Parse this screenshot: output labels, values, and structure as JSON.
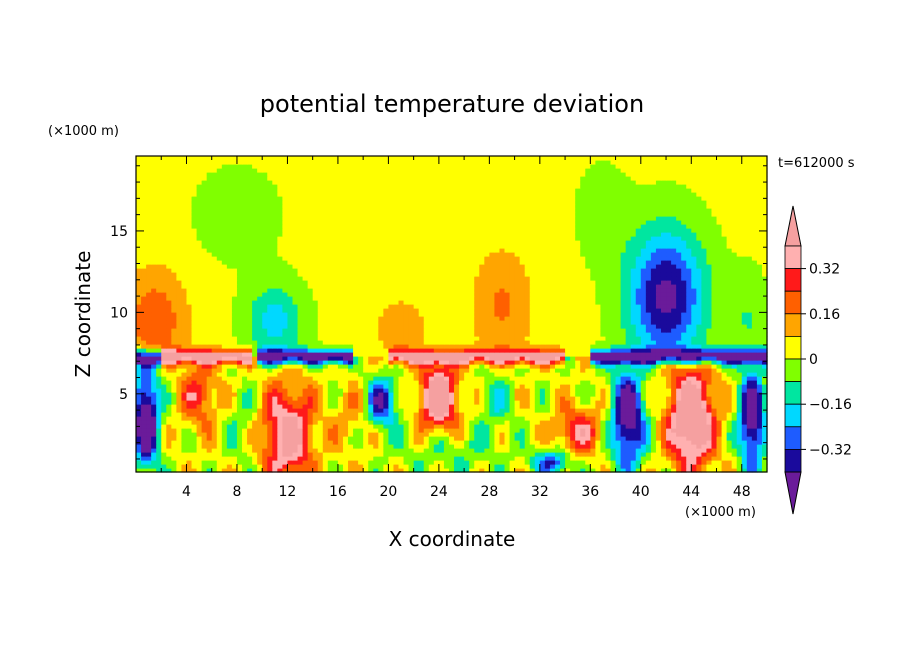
{
  "chart_data": {
    "type": "heatmap",
    "title": "potential temperature deviation",
    "time_label": "t=612000 s",
    "xlabel": "X coordinate",
    "ylabel": "Z coordinate",
    "x_unit": "(×1000 m)",
    "y_unit": "(×1000 m)",
    "xlim": [
      0,
      50
    ],
    "ylim": [
      0.2,
      19.6
    ],
    "x_ticks": [
      "4",
      "8",
      "12",
      "16",
      "20",
      "24",
      "28",
      "32",
      "36",
      "40",
      "44",
      "48"
    ],
    "y_ticks": [
      "5",
      "10",
      "15"
    ],
    "colorbar": {
      "labels": [
        "0.32",
        "0.16",
        "0",
        "−0.16",
        "−0.32"
      ],
      "levels": [
        -0.4,
        -0.32,
        -0.24,
        -0.16,
        -0.08,
        0,
        0.08,
        0.16,
        0.24,
        0.32,
        0.4
      ],
      "colors": [
        "#6a1b9a",
        "#1a0a9c",
        "#1e5cff",
        "#00d8ff",
        "#00e6a0",
        "#80ff00",
        "#ffff00",
        "#ffa500",
        "#ff6000",
        "#ff1a1a",
        "#ffb0b0",
        "#f5a0a0"
      ]
    },
    "field": {
      "background": 0.02,
      "upper_bumps": [
        {
          "x": 1.5,
          "z": 9.5,
          "sx": 2.6,
          "sz": 3.2,
          "a": 0.2
        },
        {
          "x": 11,
          "z": 9.5,
          "sx": 2.2,
          "sz": 2.2,
          "a": -0.22
        },
        {
          "x": 21,
          "z": 9.0,
          "sx": 2.2,
          "sz": 2.0,
          "a": 0.12
        },
        {
          "x": 29,
          "z": 10.5,
          "sx": 2.5,
          "sz": 3.5,
          "a": 0.15
        },
        {
          "x": 42,
          "z": 11.0,
          "sx": 3.0,
          "sz": 4.0,
          "a": -0.45
        },
        {
          "x": 37,
          "z": 16.0,
          "sx": 2.0,
          "sz": 3.0,
          "a": -0.07
        },
        {
          "x": 8,
          "z": 16.0,
          "sx": 3.5,
          "sz": 3.0,
          "a": -0.06
        },
        {
          "x": 48.5,
          "z": 9.5,
          "sx": 1.5,
          "sz": 3.0,
          "a": -0.1
        }
      ],
      "lower_bumps": [
        {
          "x": 0.8,
          "z": 3.5,
          "sx": 1.0,
          "sz": 3.0,
          "a": -0.6
        },
        {
          "x": 5,
          "z": 5.0,
          "sx": 1.5,
          "sz": 2.0,
          "a": 0.25
        },
        {
          "x": 12,
          "z": 2.5,
          "sx": 2.0,
          "sz": 3.0,
          "a": 0.45
        },
        {
          "x": 8.5,
          "z": 3.0,
          "sx": 1.2,
          "sz": 2.5,
          "a": -0.1
        },
        {
          "x": 17,
          "z": 3.5,
          "sx": 1.5,
          "sz": 2.0,
          "a": 0.1
        },
        {
          "x": 19.5,
          "z": 4.5,
          "sx": 1.2,
          "sz": 1.5,
          "a": -0.4
        },
        {
          "x": 24,
          "z": 4.8,
          "sx": 1.5,
          "sz": 2.0,
          "a": 0.55
        },
        {
          "x": 28.5,
          "z": 4.5,
          "sx": 1.2,
          "sz": 1.5,
          "a": -0.15
        },
        {
          "x": 35,
          "z": 2.7,
          "sx": 1.8,
          "sz": 1.5,
          "a": 0.3
        },
        {
          "x": 39,
          "z": 3.5,
          "sx": 1.3,
          "sz": 3.0,
          "a": -0.55
        },
        {
          "x": 44,
          "z": 3.5,
          "sx": 1.8,
          "sz": 3.0,
          "a": 0.6
        },
        {
          "x": 48.8,
          "z": 3.5,
          "sx": 1.0,
          "sz": 3.0,
          "a": -0.55
        },
        {
          "x": 33,
          "z": 0.8,
          "sx": 1.5,
          "sz": 0.8,
          "a": -0.35
        },
        {
          "x": 25,
          "z": 1.5,
          "sx": 4.0,
          "sz": 1.5,
          "a": -0.1
        }
      ],
      "inversion": {
        "z": 7.3,
        "thickness": 0.45,
        "segments": [
          {
            "x0": 0,
            "x1": 2,
            "a": -0.5
          },
          {
            "x0": 2,
            "x1": 9,
            "a": 0.45
          },
          {
            "x0": 9.5,
            "x1": 17,
            "a": -0.5
          },
          {
            "x0": 20,
            "x1": 34,
            "a": 0.42
          },
          {
            "x0": 36,
            "x1": 50,
            "a": -0.5
          }
        ]
      }
    }
  }
}
